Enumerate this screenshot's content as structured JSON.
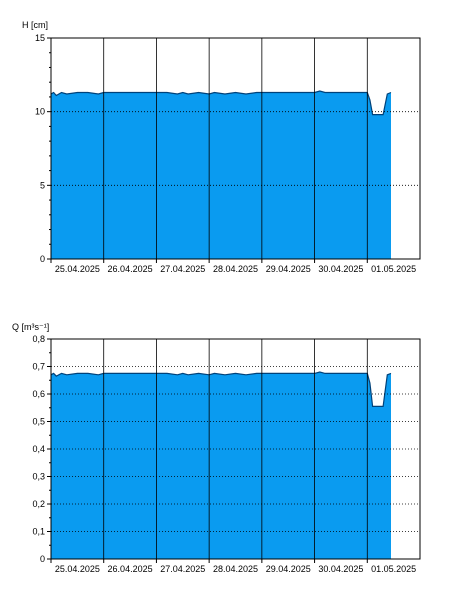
{
  "chart_data": [
    {
      "type": "area",
      "ylabel": "H [cm]",
      "ylim": [
        0,
        15
      ],
      "yticks": [
        "0",
        "5",
        "10",
        "15"
      ],
      "categories": [
        "25.04.2025",
        "26.04.2025",
        "27.04.2025",
        "28.04.2025",
        "29.04.2025",
        "30.04.2025",
        "01.05.2025"
      ],
      "xlim": [
        0,
        7
      ],
      "grid": true,
      "color": "#0a9bf0",
      "series": [
        {
          "x": [
            0.0,
            0.05,
            0.1,
            0.2,
            0.3,
            0.5,
            0.7,
            0.9,
            1.0,
            1.2,
            1.5,
            1.8,
            2.0,
            2.2,
            2.4,
            2.5,
            2.6,
            2.8,
            3.0,
            3.1,
            3.3,
            3.5,
            3.7,
            3.9,
            4.0,
            4.3,
            4.6,
            4.9,
            5.0,
            5.1,
            5.2,
            5.4,
            5.6,
            5.8,
            5.9,
            6.0,
            6.05,
            6.1,
            6.3,
            6.38,
            6.45
          ],
          "y": [
            11.2,
            11.3,
            11.1,
            11.3,
            11.2,
            11.3,
            11.3,
            11.2,
            11.3,
            11.3,
            11.3,
            11.3,
            11.3,
            11.3,
            11.2,
            11.3,
            11.2,
            11.3,
            11.2,
            11.3,
            11.2,
            11.3,
            11.2,
            11.3,
            11.3,
            11.3,
            11.3,
            11.3,
            11.3,
            11.4,
            11.3,
            11.3,
            11.3,
            11.3,
            11.3,
            11.3,
            10.8,
            9.8,
            9.8,
            11.2,
            11.3
          ]
        }
      ]
    },
    {
      "type": "area",
      "ylabel": "Q [m³s⁻¹]",
      "ylim": [
        0,
        0.8
      ],
      "yticks": [
        "0",
        "0,1",
        "0,2",
        "0,3",
        "0,4",
        "0,5",
        "0,6",
        "0,7",
        "0,8"
      ],
      "categories": [
        "25.04.2025",
        "26.04.2025",
        "27.04.2025",
        "28.04.2025",
        "29.04.2025",
        "30.04.2025",
        "01.05.2025"
      ],
      "xlim": [
        0,
        7
      ],
      "grid": true,
      "color": "#0a9bf0",
      "series": [
        {
          "x": [
            0.0,
            0.05,
            0.1,
            0.2,
            0.3,
            0.5,
            0.7,
            0.9,
            1.0,
            1.2,
            1.5,
            1.8,
            2.0,
            2.2,
            2.4,
            2.5,
            2.6,
            2.8,
            3.0,
            3.1,
            3.3,
            3.5,
            3.7,
            3.9,
            4.0,
            4.3,
            4.6,
            4.9,
            5.0,
            5.1,
            5.2,
            5.4,
            5.6,
            5.8,
            5.9,
            6.0,
            6.05,
            6.1,
            6.3,
            6.38,
            6.45
          ],
          "y": [
            0.67,
            0.675,
            0.665,
            0.675,
            0.67,
            0.675,
            0.675,
            0.67,
            0.675,
            0.675,
            0.675,
            0.675,
            0.675,
            0.675,
            0.67,
            0.675,
            0.67,
            0.675,
            0.67,
            0.675,
            0.67,
            0.675,
            0.67,
            0.675,
            0.675,
            0.675,
            0.675,
            0.675,
            0.675,
            0.68,
            0.675,
            0.675,
            0.675,
            0.675,
            0.675,
            0.675,
            0.64,
            0.555,
            0.555,
            0.67,
            0.675
          ]
        }
      ]
    }
  ]
}
